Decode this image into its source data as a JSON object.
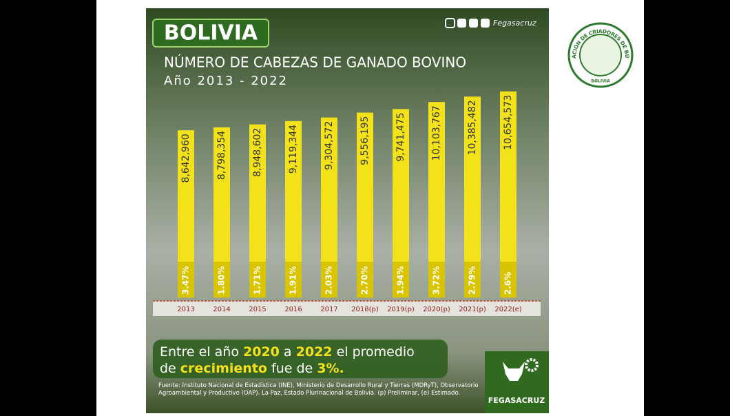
{
  "chart_data": {
    "type": "bar",
    "title": "BOLIVIA",
    "subtitle": "NÚMERO DE CABEZAS DE GANADO BOVINO",
    "period": "Año 2013 - 2022",
    "handle": "Fegasacruz",
    "categories": [
      "2013",
      "2014",
      "2015",
      "2016",
      "2017",
      "2018(p)",
      "2019(p)",
      "2020(p)",
      "2021(p)",
      "2022(e)"
    ],
    "values": [
      8642960,
      8798354,
      8948602,
      9119344,
      9304572,
      9556195,
      9741475,
      10103767,
      10385482,
      10654573
    ],
    "value_labels": [
      "8,642,960",
      "8,798,354",
      "8,948,602",
      "9,119,344",
      "9,304,572",
      "9,556,195",
      "9,741,475",
      "10,103,767",
      "10,385,482",
      "10,654,573"
    ],
    "growth": [
      3.47,
      1.8,
      1.71,
      1.91,
      2.03,
      2.7,
      1.94,
      3.72,
      2.79,
      2.6
    ],
    "growth_labels": [
      "3.47%",
      "1.80%",
      "1.71%",
      "1.91%",
      "2.03%",
      "2.70%",
      "1.94%",
      "3.72%",
      "2.79%",
      "2.6%"
    ],
    "color": "#f3e21a",
    "ylim": [
      0,
      11000000
    ],
    "message": {
      "line1": [
        "Entre el año",
        "2020",
        "a",
        "2022",
        "el promedio"
      ],
      "line2": [
        "de",
        "crecimiento",
        "fue de",
        "3%."
      ]
    },
    "source": "Fuente: Instituto Nacional de Estadística (INE), Ministerio de Desarrollo Rural y Tierras (MDRyT), Observatorio Agroambiental y Productivo (OAP). La Paz, Estado Plurinacional de Bolivia. (p) Preliminar, (e) Estimado.",
    "brand": "FEGASACRUZ",
    "logo_text": "ASOCIACIÓN DE CRIADORES DE BÚFALOS",
    "logo_country": "BOLIVIA"
  }
}
